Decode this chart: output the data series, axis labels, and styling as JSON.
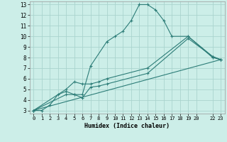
{
  "xlabel": "Humidex (Indice chaleur)",
  "bg_color": "#cceee8",
  "grid_color": "#aad4ce",
  "line_color": "#2d7d78",
  "xlim": [
    -0.5,
    23.5
  ],
  "ylim": [
    2.7,
    13.3
  ],
  "xtick_pos": [
    0,
    1,
    2,
    3,
    4,
    5,
    6,
    7,
    8,
    9,
    10,
    11,
    12,
    13,
    14,
    15,
    16,
    17,
    18,
    19,
    20,
    22,
    23
  ],
  "xtick_labels": [
    "0",
    "1",
    "2",
    "3",
    "4",
    "5",
    "6",
    "7",
    "8",
    "9",
    "10",
    "11",
    "12",
    "13",
    "14",
    "15",
    "16",
    "17",
    "18",
    "19",
    "20",
    "22",
    "23"
  ],
  "yticks": [
    3,
    4,
    5,
    6,
    7,
    8,
    9,
    10,
    11,
    12,
    13
  ],
  "line1_x": [
    0,
    1,
    2,
    3,
    4,
    5,
    6,
    7,
    9,
    10,
    11,
    12,
    13,
    14,
    15,
    16,
    17,
    19,
    22,
    23
  ],
  "line1_y": [
    3.0,
    3.0,
    3.5,
    4.5,
    4.8,
    4.5,
    4.5,
    7.2,
    9.5,
    10.0,
    10.5,
    11.5,
    13.0,
    13.0,
    12.5,
    11.5,
    10.0,
    10.0,
    8.0,
    7.8
  ],
  "line2_x": [
    0,
    4,
    5,
    6,
    7,
    8,
    9,
    14,
    19,
    22,
    23
  ],
  "line2_y": [
    3.0,
    5.0,
    5.7,
    5.5,
    5.5,
    5.7,
    6.0,
    7.0,
    10.0,
    8.1,
    7.8
  ],
  "line3_x": [
    0,
    4,
    5,
    6,
    7,
    8,
    9,
    14,
    19,
    22,
    23
  ],
  "line3_y": [
    3.0,
    4.5,
    4.5,
    4.2,
    5.2,
    5.3,
    5.5,
    6.5,
    9.8,
    8.1,
    7.8
  ],
  "line4_x": [
    0,
    23
  ],
  "line4_y": [
    3.0,
    7.8
  ]
}
